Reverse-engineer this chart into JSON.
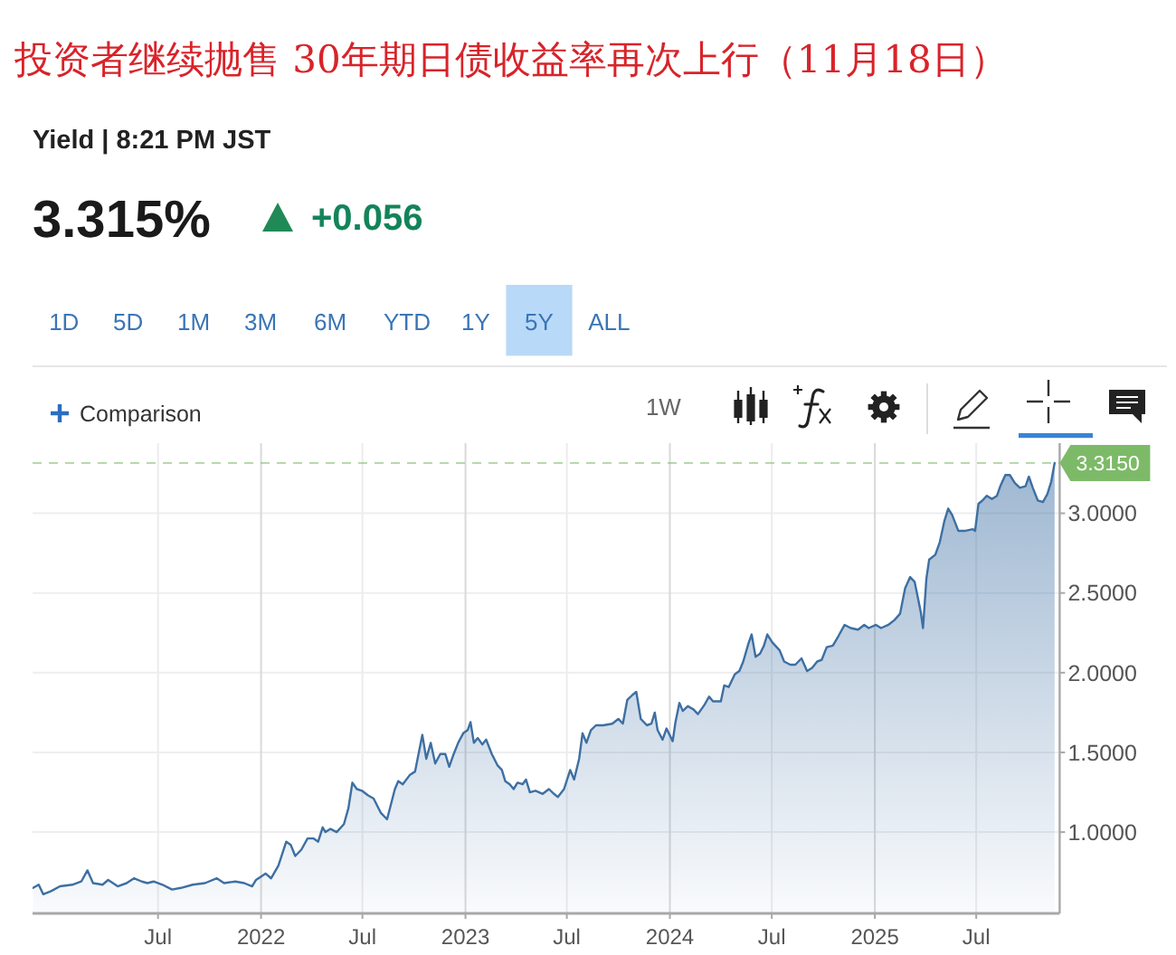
{
  "chart_data": {
    "type": "area",
    "title": "投资者继续抛售 30年期日债收益率再次上行（11月18日）",
    "subtitle": "Yield | 8:21 PM JST",
    "annotations": [
      "3.315%",
      "+0.056",
      "1D",
      "5D",
      "1M",
      "3M",
      "6M",
      "YTD",
      "1Y",
      "5Y",
      "ALL",
      "Comparison",
      "1W"
    ],
    "x": [
      "2020-11-20",
      "2020-11-30",
      "2020-12-08",
      "2020-12-22",
      "2021-01-07",
      "2021-01-29",
      "2021-02-14",
      "2021-02-25",
      "2021-03-07",
      "2021-03-24",
      "2021-04-03",
      "2021-04-20",
      "2021-05-06",
      "2021-05-19",
      "2021-06-02",
      "2021-06-12",
      "2021-06-23",
      "2021-07-09",
      "2021-07-26",
      "2021-08-11",
      "2021-09-01",
      "2021-09-23",
      "2021-10-14",
      "2021-10-27",
      "2021-11-16",
      "2021-12-02",
      "2021-12-16",
      "2021-12-23",
      "2022-01-09",
      "2022-01-19",
      "2022-02-01",
      "2022-02-15",
      "2022-02-23",
      "2022-03-03",
      "2022-03-14",
      "2022-03-25",
      "2022-04-05",
      "2022-04-13",
      "2022-04-21",
      "2022-04-26",
      "2022-05-05",
      "2022-05-16",
      "2022-05-29",
      "2022-06-06",
      "2022-06-13",
      "2022-06-21",
      "2022-06-30",
      "2022-07-11",
      "2022-07-21",
      "2022-08-03",
      "2022-08-14",
      "2022-08-28",
      "2022-09-03",
      "2022-09-11",
      "2022-09-24",
      "2022-10-03",
      "2022-10-16",
      "2022-10-23",
      "2022-10-31",
      "2022-11-08",
      "2022-11-17",
      "2022-11-26",
      "2022-12-03",
      "2022-12-11",
      "2022-12-19",
      "2022-12-28",
      "2023-01-05",
      "2023-01-10",
      "2023-01-16",
      "2023-01-23",
      "2023-01-31",
      "2023-02-07",
      "2023-02-17",
      "2023-02-27",
      "2023-03-07",
      "2023-03-13",
      "2023-03-21",
      "2023-03-28",
      "2023-04-04",
      "2023-04-13",
      "2023-04-19",
      "2023-04-26",
      "2023-05-06",
      "2023-05-19",
      "2023-05-30",
      "2023-06-08",
      "2023-06-15",
      "2023-06-26",
      "2023-07-07",
      "2023-07-14",
      "2023-07-23",
      "2023-07-29",
      "2023-08-05",
      "2023-08-13",
      "2023-08-22",
      "2023-09-04",
      "2023-09-20",
      "2023-10-01",
      "2023-10-09",
      "2023-10-17",
      "2023-10-26",
      "2023-11-02",
      "2023-11-10",
      "2023-11-21",
      "2023-11-29",
      "2023-12-05",
      "2023-12-10",
      "2023-12-19",
      "2023-12-26",
      "2024-01-06",
      "2024-01-11",
      "2024-01-18",
      "2024-01-24",
      "2024-02-02",
      "2024-02-12",
      "2024-02-20",
      "2024-03-03",
      "2024-03-11",
      "2024-03-18",
      "2024-04-01",
      "2024-04-07",
      "2024-04-15",
      "2024-04-26",
      "2024-05-04",
      "2024-05-11",
      "2024-05-20",
      "2024-05-26",
      "2024-06-02",
      "2024-06-10",
      "2024-06-17",
      "2024-06-23",
      "2024-07-02",
      "2024-07-15",
      "2024-07-23",
      "2024-08-03",
      "2024-08-12",
      "2024-08-23",
      "2024-09-02",
      "2024-09-11",
      "2024-09-20",
      "2024-09-28",
      "2024-10-07",
      "2024-10-18",
      "2024-10-28",
      "2024-11-08",
      "2024-11-19",
      "2024-12-02",
      "2024-12-13",
      "2024-12-21",
      "2025-01-03",
      "2025-01-12",
      "2025-01-25",
      "2025-02-05",
      "2025-02-15",
      "2025-02-24",
      "2025-03-05",
      "2025-03-13",
      "2025-03-20",
      "2025-03-24",
      "2025-03-28",
      "2025-04-03",
      "2025-04-08",
      "2025-04-19",
      "2025-04-27",
      "2025-05-05",
      "2025-05-12",
      "2025-05-19",
      "2025-05-30",
      "2025-06-12",
      "2025-06-25",
      "2025-06-29",
      "2025-07-05",
      "2025-07-12",
      "2025-07-20",
      "2025-07-29",
      "2025-08-07",
      "2025-08-13",
      "2025-08-22",
      "2025-08-30",
      "2025-09-08",
      "2025-09-17",
      "2025-09-27",
      "2025-10-03",
      "2025-10-10",
      "2025-10-19",
      "2025-10-28",
      "2025-11-05",
      "2025-11-12",
      "2025-11-18"
    ],
    "series": [
      {
        "color": "#3d6fa3",
        "values": [
          0.65,
          0.67,
          0.61,
          0.63,
          0.66,
          0.67,
          0.69,
          0.76,
          0.68,
          0.67,
          0.7,
          0.66,
          0.68,
          0.71,
          0.69,
          0.68,
          0.69,
          0.67,
          0.64,
          0.65,
          0.67,
          0.68,
          0.71,
          0.68,
          0.69,
          0.68,
          0.66,
          0.7,
          0.74,
          0.71,
          0.79,
          0.94,
          0.92,
          0.85,
          0.89,
          0.96,
          0.96,
          0.94,
          1.03,
          1.0,
          1.02,
          1.0,
          1.05,
          1.15,
          1.31,
          1.27,
          1.26,
          1.23,
          1.21,
          1.12,
          1.08,
          1.27,
          1.32,
          1.3,
          1.36,
          1.38,
          1.61,
          1.46,
          1.56,
          1.43,
          1.49,
          1.49,
          1.41,
          1.49,
          1.56,
          1.62,
          1.64,
          1.69,
          1.56,
          1.59,
          1.55,
          1.58,
          1.49,
          1.42,
          1.39,
          1.32,
          1.3,
          1.27,
          1.31,
          1.3,
          1.33,
          1.25,
          1.26,
          1.24,
          1.27,
          1.24,
          1.22,
          1.27,
          1.39,
          1.33,
          1.46,
          1.62,
          1.56,
          1.64,
          1.67,
          1.67,
          1.68,
          1.71,
          1.68,
          1.83,
          1.86,
          1.88,
          1.71,
          1.67,
          1.68,
          1.75,
          1.64,
          1.58,
          1.65,
          1.57,
          1.69,
          1.81,
          1.76,
          1.79,
          1.77,
          1.74,
          1.8,
          1.85,
          1.82,
          1.82,
          1.92,
          1.91,
          1.99,
          2.01,
          2.07,
          2.18,
          2.24,
          2.1,
          2.12,
          2.17,
          2.24,
          2.19,
          2.14,
          2.07,
          2.05,
          2.05,
          2.09,
          2.01,
          2.03,
          2.07,
          2.08,
          2.16,
          2.17,
          2.23,
          2.3,
          2.28,
          2.27,
          2.3,
          2.28,
          2.3,
          2.28,
          2.3,
          2.33,
          2.37,
          2.53,
          2.6,
          2.57,
          2.45,
          2.38,
          2.28,
          2.59,
          2.71,
          2.74,
          2.82,
          2.95,
          3.03,
          2.99,
          2.89,
          2.89,
          2.9,
          2.89,
          3.06,
          3.08,
          3.11,
          3.09,
          3.11,
          3.17,
          3.24,
          3.24,
          3.19,
          3.16,
          3.17,
          3.23,
          3.16,
          3.08,
          3.07,
          3.12,
          3.2,
          3.315
        ]
      }
    ],
    "xlim": [
      "2020-11-19",
      "2025-11-27"
    ],
    "ylim": [
      0.49,
      3.44
    ],
    "xticks": [
      {
        "value": "2021-07-01",
        "label": "Jul"
      },
      {
        "value": "2022-01-01",
        "label": "2022"
      },
      {
        "value": "2022-07-01",
        "label": "Jul"
      },
      {
        "value": "2023-01-01",
        "label": "2023"
      },
      {
        "value": "2023-07-01",
        "label": "Jul"
      },
      {
        "value": "2024-01-01",
        "label": "2024"
      },
      {
        "value": "2024-07-01",
        "label": "Jul"
      },
      {
        "value": "2025-01-01",
        "label": "2025"
      },
      {
        "value": "2025-07-01",
        "label": "Jul"
      }
    ],
    "yticks": [
      {
        "value": 1,
        "label": "1.0000"
      },
      {
        "value": 1.5,
        "label": "1.5000"
      },
      {
        "value": 2,
        "label": "2.0000"
      },
      {
        "value": 2.5,
        "label": "2.5000"
      },
      {
        "value": 3,
        "label": "3.0000"
      }
    ],
    "ref_lines": [
      {
        "axis": "y",
        "value": 3.315,
        "label": "3.3150",
        "color": "#7dba68",
        "line_style": "dashed"
      }
    ],
    "grid": true
  }
}
